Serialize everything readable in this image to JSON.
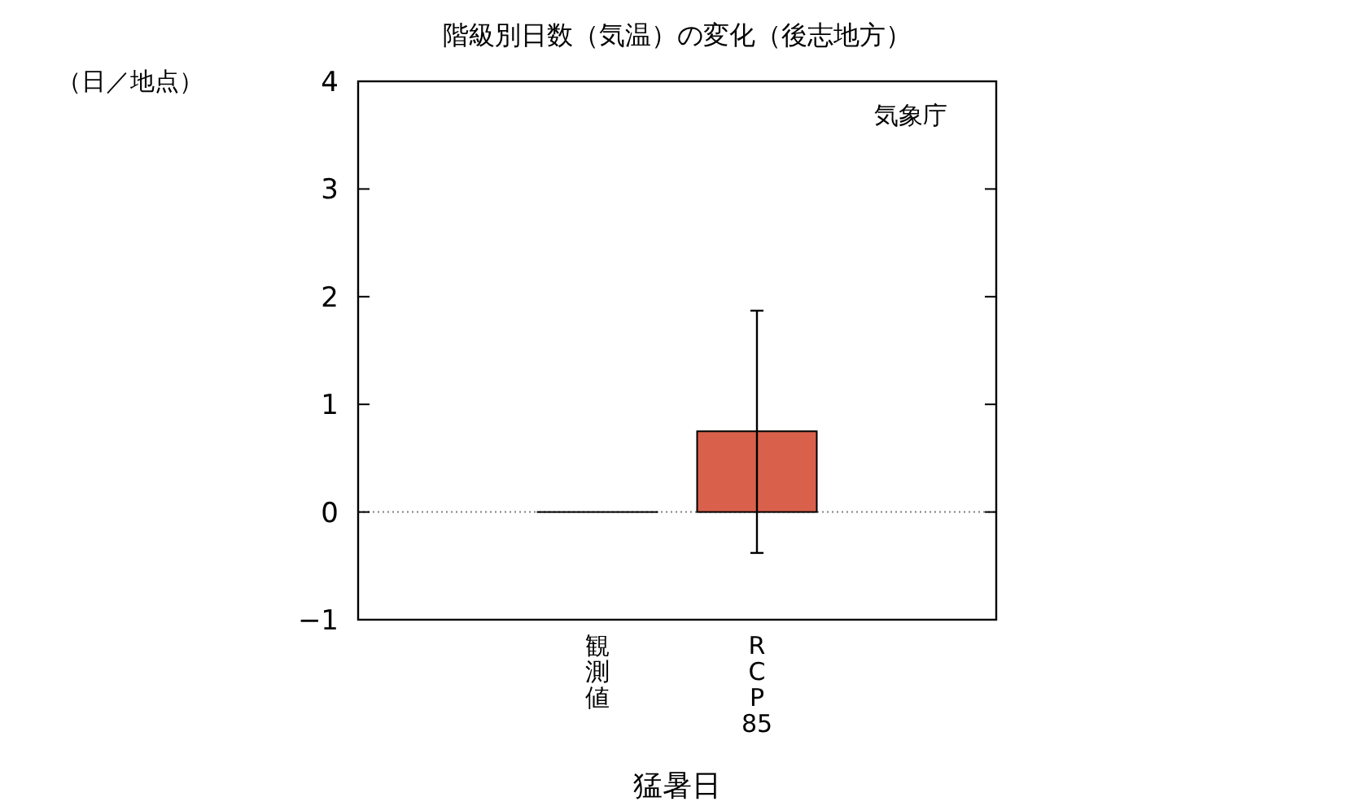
{
  "chart_data": {
    "type": "bar",
    "title": "階級別日数（気温）の変化（後志地方）",
    "xlabel": "猛暑日",
    "ylabel": "（日／地点）",
    "annotations": [
      "気象庁"
    ],
    "categories": [
      "観測値",
      "RCP85"
    ],
    "values": [
      0,
      0.75
    ],
    "errors": [
      null,
      [
        -0.38,
        1.87
      ]
    ],
    "colors": [
      "#000000",
      "#d9614c"
    ],
    "ylim": [
      -1,
      4
    ],
    "yticks": [
      -1,
      0,
      1,
      2,
      3,
      4
    ],
    "ref_lines": [
      {
        "axis": "y",
        "value": 0,
        "color": "#808080",
        "line_style": "dotted"
      }
    ],
    "grid": false
  }
}
